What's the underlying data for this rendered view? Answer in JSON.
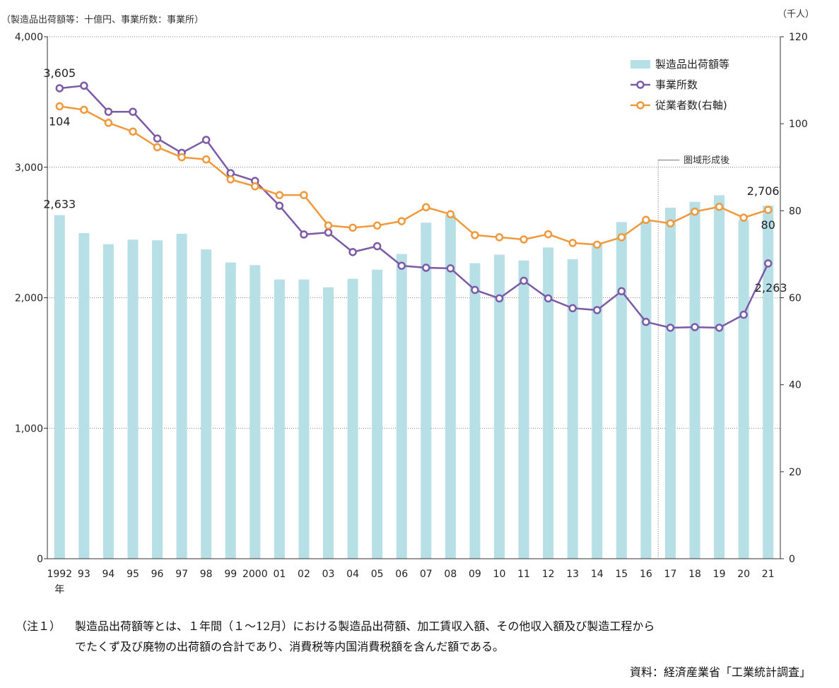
{
  "chart_data": {
    "type": "bar",
    "left_unit_label": "（製造品出荷額等：十億円、事業所数：事業所）",
    "right_unit_label": "（千人）",
    "categories": [
      "1992",
      "93",
      "94",
      "95",
      "96",
      "97",
      "98",
      "99",
      "2000",
      "01",
      "02",
      "03",
      "04",
      "05",
      "06",
      "07",
      "08",
      "09",
      "10",
      "11",
      "12",
      "13",
      "14",
      "15",
      "16",
      "17",
      "18",
      "19",
      "20",
      "21"
    ],
    "x_first_sublabel": "年",
    "left_axis": {
      "ylim": [
        0,
        4000
      ],
      "ticks": [
        0,
        1000,
        2000,
        3000,
        4000
      ],
      "tick_labels": [
        "0",
        "1,000",
        "2,000",
        "3,000",
        "4,000"
      ]
    },
    "right_axis": {
      "ylim": [
        0,
        120
      ],
      "ticks": [
        0,
        20,
        40,
        60,
        80,
        100,
        120
      ],
      "tick_labels": [
        "0",
        "20",
        "40",
        "60",
        "80",
        "100",
        "120"
      ]
    },
    "grid": true,
    "legend_position": "top-right",
    "series": [
      {
        "name": "製造品出荷額等",
        "type": "bar",
        "axis": "left",
        "color": "#b7dfe6",
        "values": [
          2633,
          2495,
          2410,
          2445,
          2440,
          2490,
          2370,
          2270,
          2250,
          2140,
          2140,
          2080,
          2145,
          2215,
          2335,
          2575,
          2635,
          2265,
          2330,
          2285,
          2385,
          2295,
          2420,
          2580,
          2590,
          2690,
          2735,
          2785,
          2595,
          2706
        ]
      },
      {
        "name": "事業所数",
        "type": "line",
        "axis": "left",
        "color": "#7b5aa6",
        "values": [
          3605,
          3625,
          3425,
          3425,
          3220,
          3110,
          3210,
          2955,
          2895,
          2705,
          2485,
          2500,
          2350,
          2395,
          2245,
          2230,
          2225,
          2060,
          1995,
          2130,
          1995,
          1920,
          1905,
          2050,
          1815,
          1770,
          1775,
          1770,
          1870,
          2263
        ]
      },
      {
        "name": "従業者数(右軸)",
        "type": "line",
        "axis": "right",
        "color": "#f0983c",
        "values": [
          104,
          103.2,
          100.2,
          98.2,
          94.6,
          92.3,
          91.8,
          87.2,
          85.6,
          83.6,
          83.6,
          76.6,
          76.1,
          76.6,
          77.6,
          80.8,
          79.2,
          74.4,
          73.9,
          73.4,
          74.6,
          72.6,
          72.2,
          73.9,
          77.9,
          77.1,
          79.8,
          80.9,
          78.4,
          80.2
        ]
      }
    ],
    "annotations": [
      {
        "text": "圏域形成後",
        "from_category": "17"
      }
    ],
    "data_labels": [
      {
        "series": 1,
        "index": 0,
        "text": "3,605"
      },
      {
        "series": 2,
        "index": 0,
        "text": "104"
      },
      {
        "series": 0,
        "index": 0,
        "text": "2,633"
      },
      {
        "series": 0,
        "index": 29,
        "text": "2,706"
      },
      {
        "series": 2,
        "index": 29,
        "text": "80"
      },
      {
        "series": 1,
        "index": 29,
        "text": "2,263"
      }
    ]
  },
  "notes": {
    "note1_marker": "（注１）",
    "note1_line1": "製造品出荷額等とは、１年間（１～12月）における製造品出荷額、加工賃収入額、その他収入額及び製造工程から",
    "note1_line2": "でたくず及び廃物の出荷額の合計であり、消費税等内国消費税額を含んだ額である。",
    "source": "資料：経済産業省「工業統計調査」"
  }
}
